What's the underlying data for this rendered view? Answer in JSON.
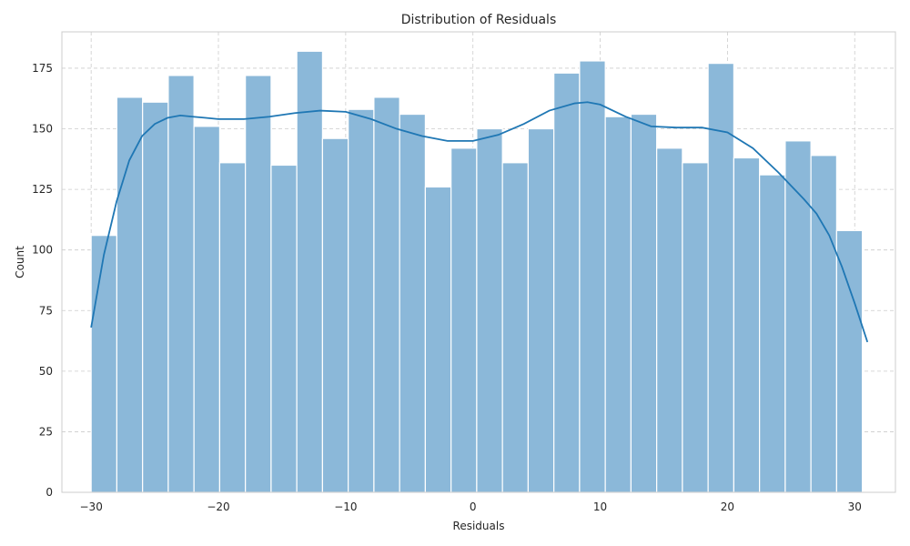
{
  "chart_data": {
    "type": "bar",
    "title": "Distribution of Residuals",
    "xlabel": "Residuals",
    "ylabel": "Count",
    "xlim": [
      -32.3,
      33.2
    ],
    "ylim": [
      0,
      190
    ],
    "xticks": [
      -30,
      -20,
      -10,
      0,
      10,
      20,
      30
    ],
    "xtick_labels": [
      "−30",
      "−20",
      "−10",
      "0",
      "10",
      "20",
      "30"
    ],
    "yticks": [
      0,
      25,
      50,
      75,
      100,
      125,
      150,
      175
    ],
    "ytick_labels": [
      "0",
      "25",
      "50",
      "75",
      "100",
      "125",
      "150",
      "175"
    ],
    "grid": true,
    "bin_start": -30,
    "bin_width": 2.02,
    "values": [
      106,
      163,
      161,
      172,
      151,
      136,
      172,
      135,
      182,
      146,
      158,
      163,
      156,
      126,
      142,
      150,
      136,
      150,
      173,
      178,
      155,
      156,
      142,
      136,
      177,
      138,
      131,
      145,
      139,
      108
    ],
    "kde": {
      "x": [
        -30,
        -29,
        -28,
        -27,
        -26,
        -25,
        -24,
        -23,
        -22,
        -21,
        -20,
        -18,
        -16,
        -14,
        -12,
        -10,
        -8,
        -6,
        -4,
        -2,
        0,
        2,
        4,
        6,
        8,
        9,
        10,
        12,
        14,
        16,
        18,
        20,
        22,
        24,
        26,
        27,
        28,
        29,
        30,
        31
      ],
      "y": [
        68,
        98,
        120,
        137,
        147,
        152,
        154.5,
        155.5,
        155,
        154.5,
        154,
        154,
        155,
        156.5,
        157.5,
        157,
        154,
        150,
        147,
        145,
        145,
        147.5,
        152,
        157.5,
        160.5,
        161,
        160,
        155,
        151,
        150.5,
        150.5,
        148.5,
        142,
        132,
        121,
        115,
        106,
        93,
        78,
        62
      ]
    },
    "bar_color": "#8bb8d9",
    "line_color": "#1f77b4"
  }
}
